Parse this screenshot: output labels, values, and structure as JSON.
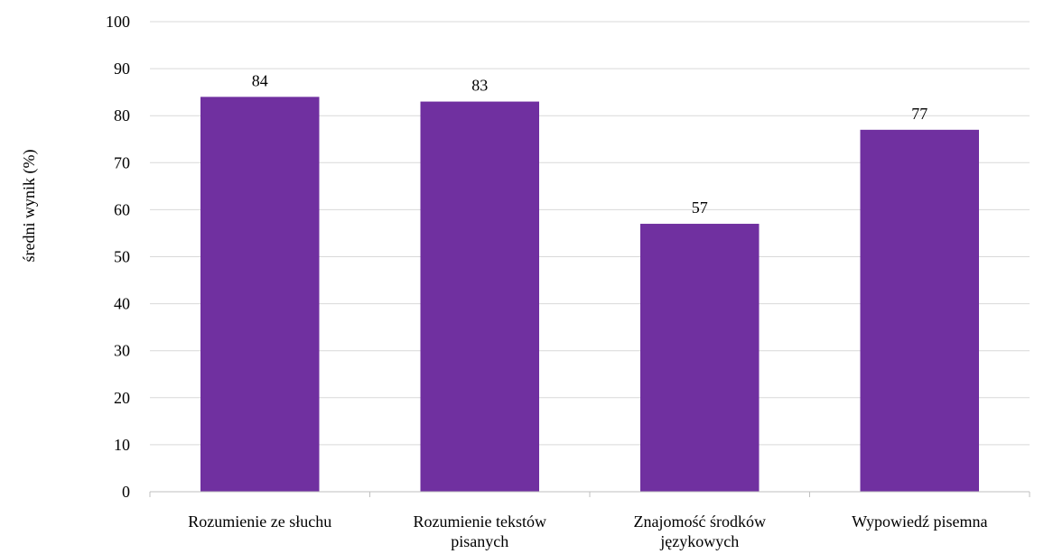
{
  "chart_data": {
    "type": "bar",
    "categories": [
      [
        "Rozumienie ze słuchu"
      ],
      [
        "Rozumienie tekstów",
        "pisanych"
      ],
      [
        "Znajomość środków",
        "językowych"
      ],
      [
        "Wypowiedź pisemna"
      ]
    ],
    "values": [
      84,
      83,
      57,
      77
    ],
    "data_labels": [
      "84",
      "83",
      "57",
      "77"
    ],
    "ylabel": "średni wynik (%)",
    "ylim": [
      0,
      100
    ],
    "yticks": [
      0,
      10,
      20,
      30,
      40,
      50,
      60,
      70,
      80,
      90,
      100
    ],
    "grid": true,
    "legend": "none",
    "bar_color": "#7030a0"
  }
}
